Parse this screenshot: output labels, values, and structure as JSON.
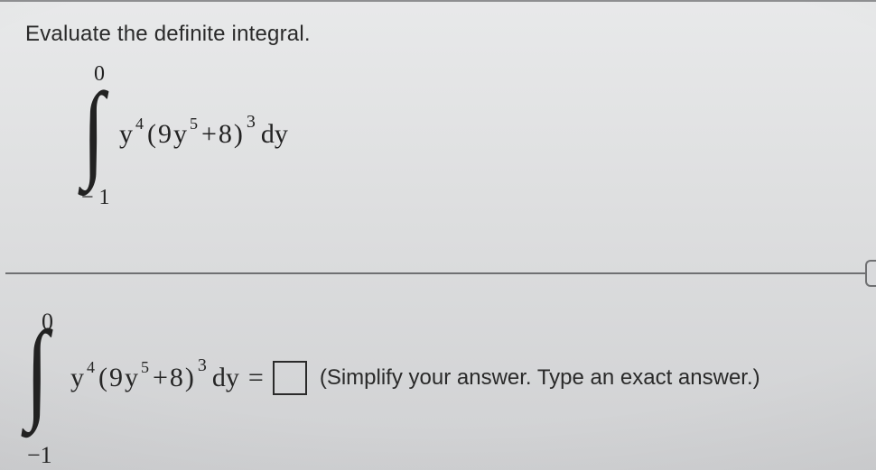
{
  "prompt": "Evaluate the definite integral.",
  "integral": {
    "upper": "0",
    "lower": "− 1",
    "var": "y",
    "y_exp": "4",
    "coeff": "9",
    "inner_y_exp": "5",
    "plus": "+",
    "constant": "8",
    "outer_exp": "3",
    "dy": "dy"
  },
  "answer": {
    "upper": "0",
    "lower": "−1",
    "eq": "=",
    "hint": "(Simplify your answer. Type an exact answer.)"
  },
  "style": {
    "page_bg": "#dcddde",
    "text_color": "#262626",
    "divider_color": "#6f7072",
    "box_border": "#2a2a2a",
    "prompt_fontsize": 24,
    "math_fontsize": 30
  }
}
